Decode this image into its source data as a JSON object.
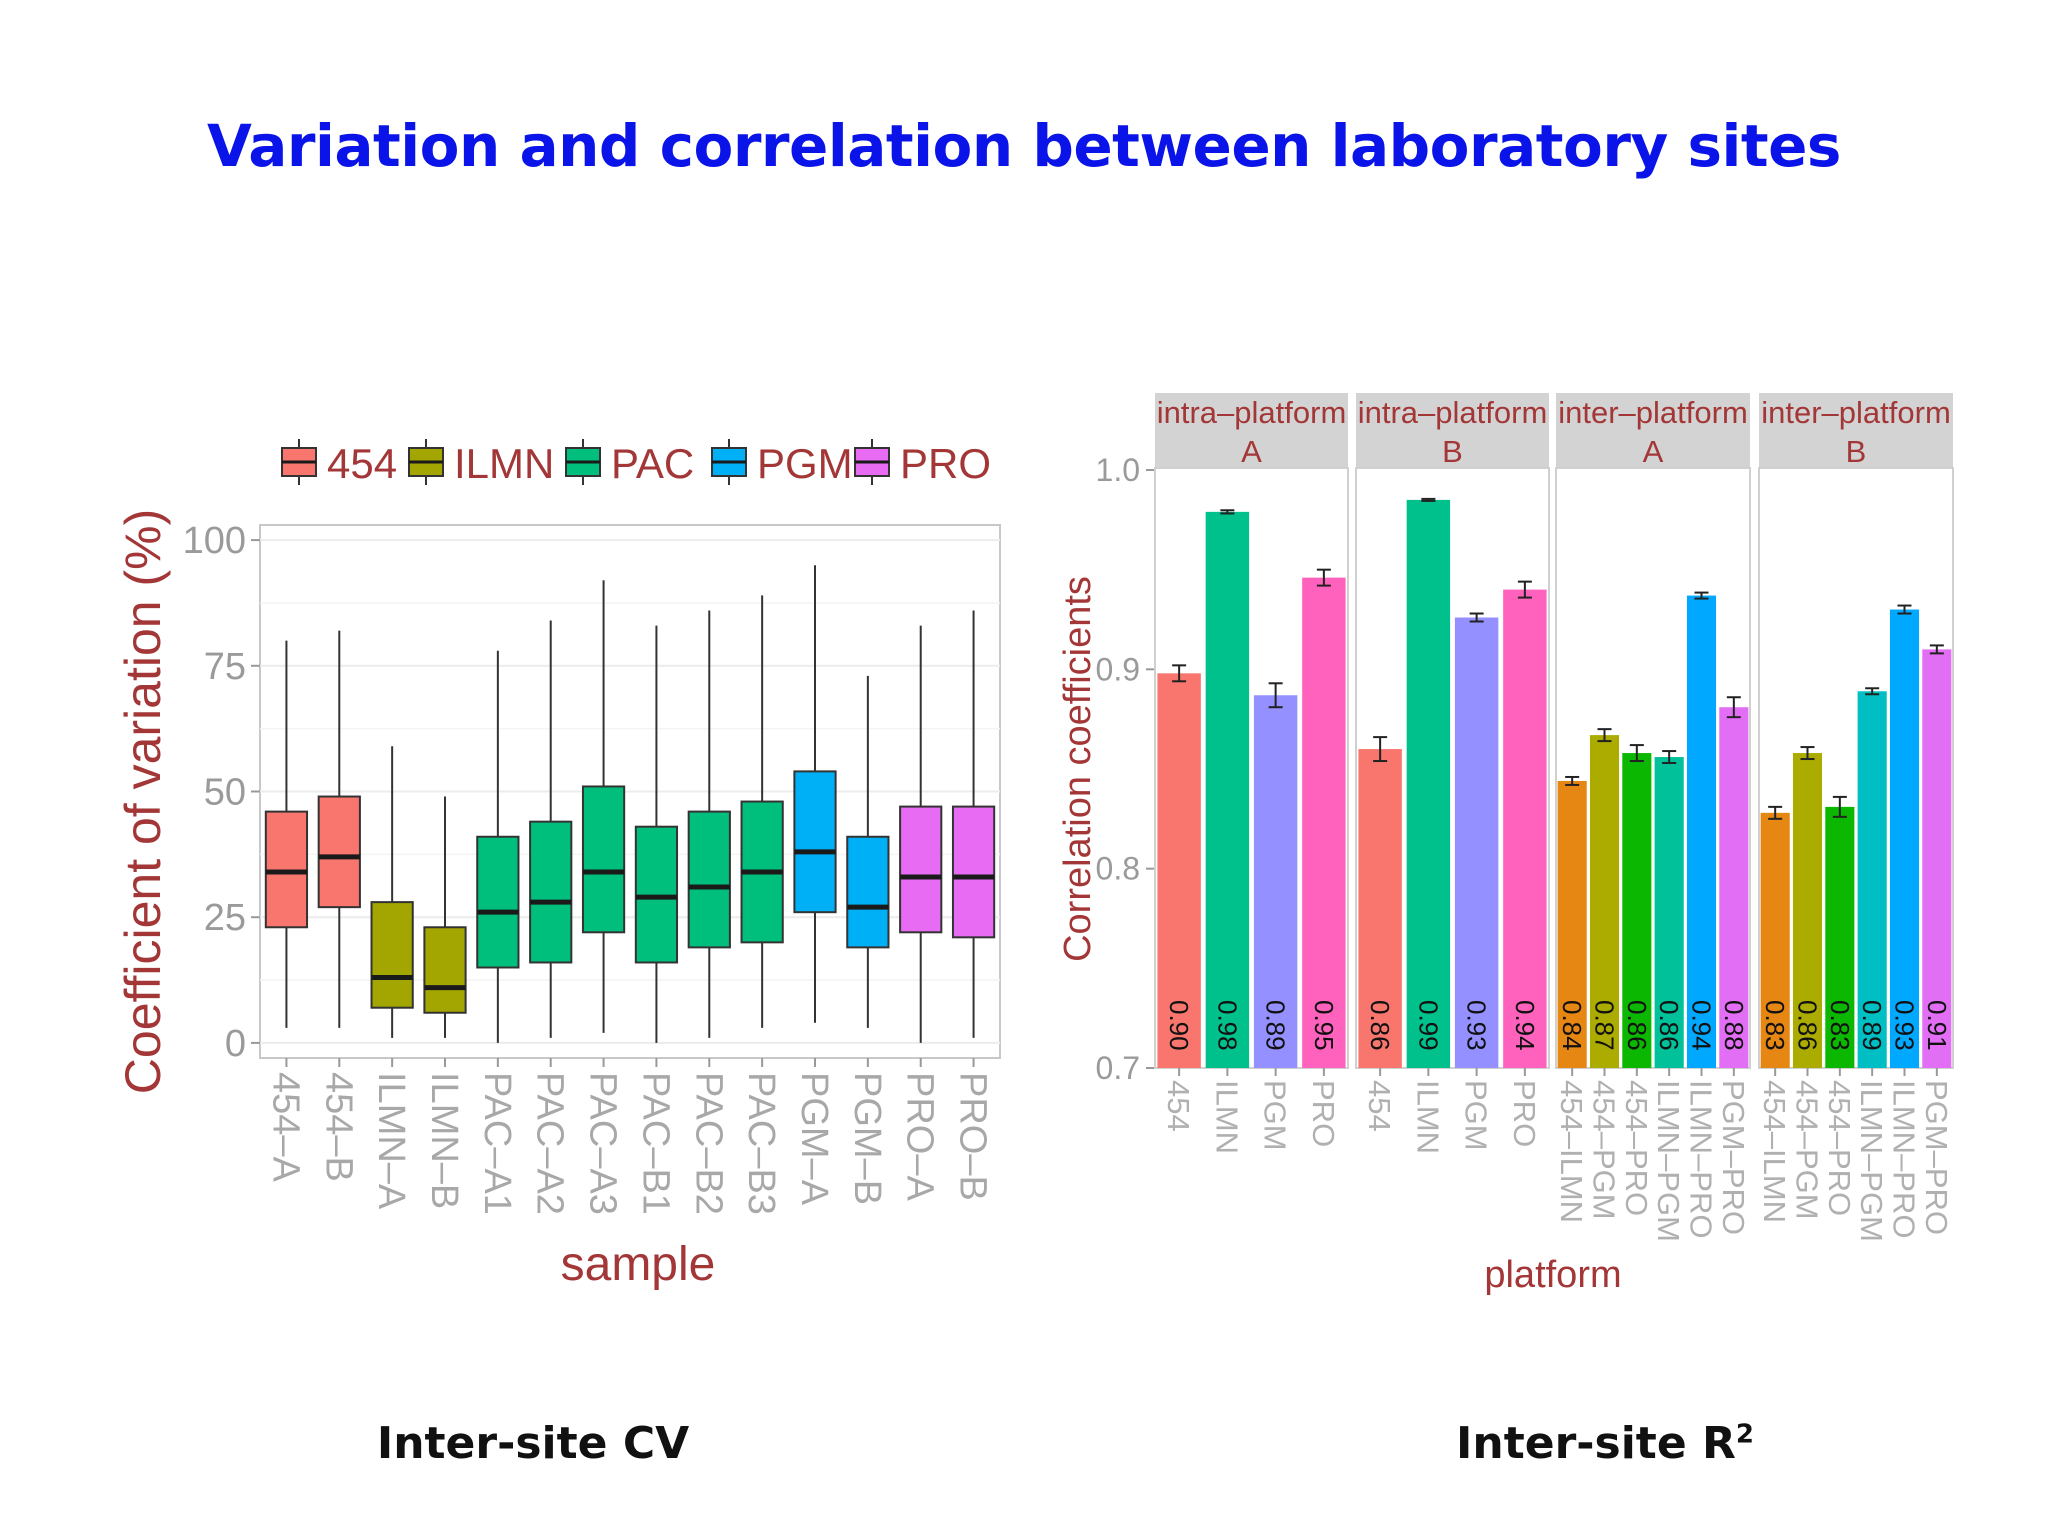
{
  "slide": {
    "title": "Variation and correlation between laboratory sites",
    "caption_left": "Inter-site CV",
    "caption_right_base": "Inter-site R",
    "caption_right_sup": "2"
  },
  "chart_data": [
    {
      "type": "boxplot",
      "ylabel": "Coefficient of variation (%)",
      "xlabel": "sample",
      "ylim": [
        -3,
        103
      ],
      "yticks": [
        0,
        25,
        50,
        75,
        100
      ],
      "grid": true,
      "legend_position": "top",
      "legend": [
        {
          "name": "454",
          "color": "#f8766d"
        },
        {
          "name": "ILMN",
          "color": "#a3a500"
        },
        {
          "name": "PAC",
          "color": "#00bf7d"
        },
        {
          "name": "PGM",
          "color": "#00b0f6"
        },
        {
          "name": "PRO",
          "color": "#e76bf3"
        }
      ],
      "categories": [
        "454–A",
        "454–B",
        "ILMN–A",
        "ILMN–B",
        "PAC–A1",
        "PAC–A2",
        "PAC–A3",
        "PAC–B1",
        "PAC–B2",
        "PAC–B3",
        "PGM–A",
        "PGM–B",
        "PRO–A",
        "PRO–B"
      ],
      "groups": [
        "454",
        "454",
        "ILMN",
        "ILMN",
        "PAC",
        "PAC",
        "PAC",
        "PAC",
        "PAC",
        "PAC",
        "PGM",
        "PGM",
        "PRO",
        "PRO"
      ],
      "boxes": [
        {
          "min": 3,
          "q1": 23,
          "median": 34,
          "q3": 46,
          "max": 80
        },
        {
          "min": 3,
          "q1": 27,
          "median": 37,
          "q3": 49,
          "max": 82
        },
        {
          "min": 1,
          "q1": 7,
          "median": 13,
          "q3": 28,
          "max": 59
        },
        {
          "min": 1,
          "q1": 6,
          "median": 11,
          "q3": 23,
          "max": 49
        },
        {
          "min": 0,
          "q1": 15,
          "median": 26,
          "q3": 41,
          "max": 78
        },
        {
          "min": 1,
          "q1": 16,
          "median": 28,
          "q3": 44,
          "max": 84
        },
        {
          "min": 2,
          "q1": 22,
          "median": 34,
          "q3": 51,
          "max": 92
        },
        {
          "min": 0,
          "q1": 16,
          "median": 29,
          "q3": 43,
          "max": 83
        },
        {
          "min": 1,
          "q1": 19,
          "median": 31,
          "q3": 46,
          "max": 86
        },
        {
          "min": 3,
          "q1": 20,
          "median": 34,
          "q3": 48,
          "max": 89
        },
        {
          "min": 4,
          "q1": 26,
          "median": 38,
          "q3": 54,
          "max": 95
        },
        {
          "min": 3,
          "q1": 19,
          "median": 27,
          "q3": 41,
          "max": 73
        },
        {
          "min": 0,
          "q1": 22,
          "median": 33,
          "q3": 47,
          "max": 83
        },
        {
          "min": 1,
          "q1": 21,
          "median": 33,
          "q3": 47,
          "max": 86
        }
      ]
    },
    {
      "type": "bar",
      "ylabel": "Correlation coefficients",
      "xlabel": "platform",
      "ylim": [
        0.7,
        1.02
      ],
      "yticks": [
        "0.7",
        "0.8",
        "0.9",
        "1.0"
      ],
      "error_bars": true,
      "facets": [
        {
          "title_line1": "intra–platform",
          "title_line2": "A",
          "bars": [
            {
              "label": "454",
              "value": 0.898,
              "err": 0.004,
              "text": "0.90",
              "color": "#f8766d"
            },
            {
              "label": "ILMN",
              "value": 0.979,
              "err": 0.0008,
              "text": "0.98",
              "color": "#00c08b"
            },
            {
              "label": "PGM",
              "value": 0.887,
              "err": 0.006,
              "text": "0.89",
              "color": "#9590ff"
            },
            {
              "label": "PRO",
              "value": 0.946,
              "err": 0.004,
              "text": "0.95",
              "color": "#ff62bc"
            }
          ]
        },
        {
          "title_line1": "intra–platform",
          "title_line2": "B",
          "bars": [
            {
              "label": "454",
              "value": 0.86,
              "err": 0.006,
              "text": "0.86",
              "color": "#f8766d"
            },
            {
              "label": "ILMN",
              "value": 0.985,
              "err": 0.0005,
              "text": "0.99",
              "color": "#00c08b"
            },
            {
              "label": "PGM",
              "value": 0.926,
              "err": 0.002,
              "text": "0.93",
              "color": "#9590ff"
            },
            {
              "label": "PRO",
              "value": 0.94,
              "err": 0.004,
              "text": "0.94",
              "color": "#ff62bc"
            }
          ]
        },
        {
          "title_line1": "inter–platform",
          "title_line2": "A",
          "bars": [
            {
              "label": "454–ILMN",
              "value": 0.844,
              "err": 0.002,
              "text": "0.84",
              "color": "#e68613"
            },
            {
              "label": "454–PGM",
              "value": 0.867,
              "err": 0.003,
              "text": "0.87",
              "color": "#abab00"
            },
            {
              "label": "454–PRO",
              "value": 0.858,
              "err": 0.004,
              "text": "0.86",
              "color": "#0cb702"
            },
            {
              "label": "ILMN–PGM",
              "value": 0.856,
              "err": 0.003,
              "text": "0.86",
              "color": "#00c19a"
            },
            {
              "label": "ILMN–PRO",
              "value": 0.937,
              "err": 0.0015,
              "text": "0.94",
              "color": "#00a9ff"
            },
            {
              "label": "PGM–PRO",
              "value": 0.881,
              "err": 0.005,
              "text": "0.88",
              "color": "#e36ef6"
            }
          ]
        },
        {
          "title_line1": "inter–platform",
          "title_line2": "B",
          "bars": [
            {
              "label": "454–ILMN",
              "value": 0.828,
              "err": 0.003,
              "text": "0.83",
              "color": "#e68613"
            },
            {
              "label": "454–PGM",
              "value": 0.858,
              "err": 0.003,
              "text": "0.86",
              "color": "#abab00"
            },
            {
              "label": "454–PRO",
              "value": 0.831,
              "err": 0.005,
              "text": "0.83",
              "color": "#0cb702"
            },
            {
              "label": "ILMN–PGM",
              "value": 0.889,
              "err": 0.0015,
              "text": "0.89",
              "color": "#00bfc4"
            },
            {
              "label": "ILMN–PRO",
              "value": 0.93,
              "err": 0.002,
              "text": "0.93",
              "color": "#00a9ff"
            },
            {
              "label": "PGM–PRO",
              "value": 0.91,
              "err": 0.002,
              "text": "0.91",
              "color": "#e36ef6"
            }
          ]
        }
      ]
    }
  ]
}
